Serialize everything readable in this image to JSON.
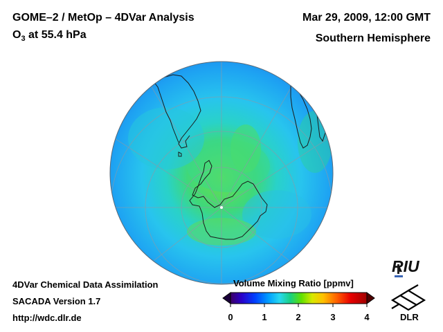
{
  "header": {
    "title": "GOME–2 / MetOp – 4DVar Analysis",
    "species": "O",
    "species_sub": "3",
    "level": " at 55.4 hPa",
    "date": "Mar 29, 2009, 12:00 GMT",
    "hemisphere": "Southern Hemisphere"
  },
  "footer": {
    "line1": "4DVar Chemical Data Assimilation",
    "line2": "SACADA Version 1.7",
    "line3": "http://wdc.dlr.de"
  },
  "colorbar": {
    "title": "Volume Mixing Ratio [ppmv]",
    "min": 0,
    "max": 4,
    "ticks": [
      "0",
      "1",
      "2",
      "3",
      "4"
    ],
    "colors": [
      "#3c0064",
      "#2a00c8",
      "#0040ff",
      "#00a0ff",
      "#28d8f0",
      "#18d080",
      "#60e000",
      "#d8e800",
      "#ffc000",
      "#ff6000",
      "#e80000",
      "#a00000"
    ]
  },
  "logos": {
    "riu": "RIU",
    "dlr": "DLR"
  },
  "map": {
    "projection": "orthographic south polar",
    "ocean_color": "#22c8ec",
    "center_value_color": "#66dd44"
  }
}
